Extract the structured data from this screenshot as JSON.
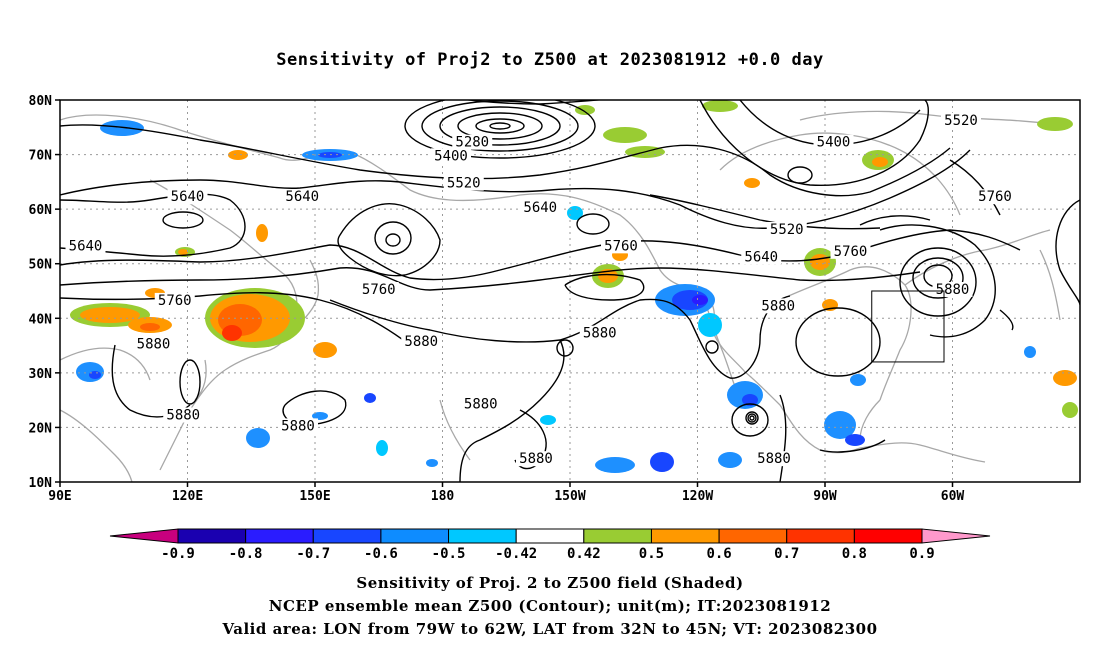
{
  "title": "Sensitivity of Proj2 to Z500 at 2023081912 +0.0 day",
  "lat_labels": [
    "80N",
    "70N",
    "60N",
    "50N",
    "40N",
    "30N",
    "20N",
    "10N"
  ],
  "lon_labels": [
    "90E",
    "120E",
    "150E",
    "180",
    "150W",
    "120W",
    "90W",
    "60W"
  ],
  "contour_labels": [
    {
      "text": "5520",
      "lon": -58,
      "lat": 76
    },
    {
      "text": "5280",
      "lon": -173,
      "lat": 72
    },
    {
      "text": "5400",
      "lon": -178,
      "lat": 69.5
    },
    {
      "text": "5520",
      "lon": -175,
      "lat": 64.5
    },
    {
      "text": "5640",
      "lon": 120,
      "lat": 62
    },
    {
      "text": "5640",
      "lon": 147,
      "lat": 62
    },
    {
      "text": "5640",
      "lon": -157,
      "lat": 60
    },
    {
      "text": "5400",
      "lon": -88,
      "lat": 72
    },
    {
      "text": "5520",
      "lon": -99,
      "lat": 56
    },
    {
      "text": "5760",
      "lon": -50,
      "lat": 62
    },
    {
      "text": "5640",
      "lon": 96,
      "lat": 53
    },
    {
      "text": "5760",
      "lon": -138,
      "lat": 53
    },
    {
      "text": "5640",
      "lon": -105,
      "lat": 51
    },
    {
      "text": "5760",
      "lon": -84,
      "lat": 52
    },
    {
      "text": "5760",
      "lon": 165,
      "lat": 45
    },
    {
      "text": "5760",
      "lon": 117,
      "lat": 43
    },
    {
      "text": "5880",
      "lon": -60,
      "lat": 45
    },
    {
      "text": "5880",
      "lon": -101,
      "lat": 42
    },
    {
      "text": "5880",
      "lon": -143,
      "lat": 37
    },
    {
      "text": "5880",
      "lon": 112,
      "lat": 35
    },
    {
      "text": "5880",
      "lon": 175,
      "lat": 35.5
    },
    {
      "text": "5880",
      "lon": 119,
      "lat": 22
    },
    {
      "text": "5880",
      "lon": 146,
      "lat": 20
    },
    {
      "text": "5880",
      "lon": -171,
      "lat": 24
    },
    {
      "text": "5880",
      "lon": -158,
      "lat": 14
    },
    {
      "text": "5880",
      "lon": -102,
      "lat": 14
    }
  ],
  "colorbar": {
    "tick_labels": [
      "-0.9",
      "-0.8",
      "-0.7",
      "-0.6",
      "-0.5",
      "-0.42",
      "0.42",
      "0.5",
      "0.6",
      "0.7",
      "0.8",
      "0.9"
    ],
    "colors": [
      "#1a00b0",
      "#2a1cff",
      "#1846ff",
      "#0e8cff",
      "#00c8ff",
      "#ffffff",
      "#99cc33",
      "#ff9900",
      "#ff6600",
      "#ff3300",
      "#ff0000"
    ],
    "low_end_color": "#c8007e",
    "high_end_color": "#ff99cc"
  },
  "captions": {
    "line1": "Sensitivity of Proj. 2 to Z500 field (Shaded)",
    "line2": "NCEP ensemble mean Z500 (Contour); unit(m); IT:2023081912",
    "line3": "Valid area: LON from 79W to 62W, LAT from 32N to 45N; VT: 2023082300"
  },
  "valid_area": {
    "lon_west": -79,
    "lon_east": -62,
    "lat_south": 32,
    "lat_north": 45
  }
}
